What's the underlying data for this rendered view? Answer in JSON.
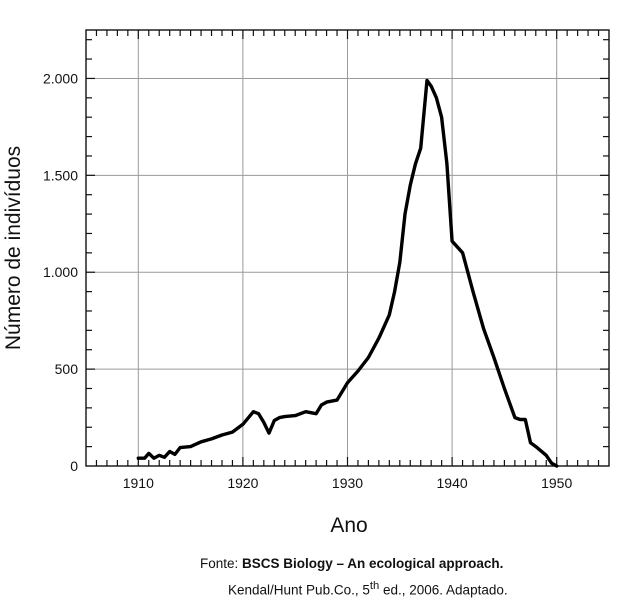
{
  "chart_data": {
    "type": "line",
    "title": "",
    "xlabel": "Ano",
    "ylabel": "Número de indivíduos",
    "xlim": [
      1905,
      1955
    ],
    "ylim": [
      0,
      2250
    ],
    "xticks": [
      1910,
      1920,
      1930,
      1940,
      1950
    ],
    "xtick_labels": [
      "1910",
      "1920",
      "1930",
      "1940",
      "1950"
    ],
    "yticks": [
      0,
      500,
      1000,
      1500,
      2000
    ],
    "ytick_labels": [
      "0",
      "500",
      "1.000",
      "1.500",
      "2.000"
    ],
    "grid": true,
    "series": [
      {
        "x": [
          1910,
          1910.6,
          1911,
          1911.5,
          1912,
          1912.5,
          1913,
          1913.5,
          1914,
          1915,
          1916,
          1917,
          1918,
          1919,
          1920,
          1921,
          1921.5,
          1922,
          1922.5,
          1923,
          1923.5,
          1924,
          1925,
          1926,
          1927,
          1927.5,
          1928,
          1929,
          1930,
          1931,
          1932,
          1933,
          1934,
          1934.5,
          1935,
          1935.5,
          1936,
          1936.5,
          1937,
          1937.6,
          1938,
          1938.5,
          1939,
          1939.5,
          1940,
          1941,
          1942,
          1943,
          1944,
          1945,
          1946,
          1946.5,
          1947,
          1947.5,
          1948,
          1949,
          1949.5,
          1950
        ],
        "y": [
          40,
          40,
          65,
          40,
          55,
          45,
          75,
          60,
          95,
          100,
          125,
          140,
          160,
          175,
          215,
          280,
          270,
          225,
          170,
          235,
          250,
          255,
          260,
          280,
          270,
          315,
          330,
          340,
          430,
          490,
          560,
          660,
          780,
          900,
          1050,
          1300,
          1450,
          1560,
          1640,
          1990,
          1960,
          1900,
          1800,
          1560,
          1160,
          1100,
          900,
          710,
          560,
          400,
          250,
          240,
          240,
          120,
          100,
          55,
          15,
          0
        ]
      }
    ],
    "source": {
      "prefix": "Fonte: ",
      "bold": "BSCS Biology – An ecological approach.",
      "line2_a": "Kendal/Hunt Pub.Co., 5",
      "line2_sup": "th",
      "line2_b": " ed., 2006. Adaptado."
    }
  }
}
